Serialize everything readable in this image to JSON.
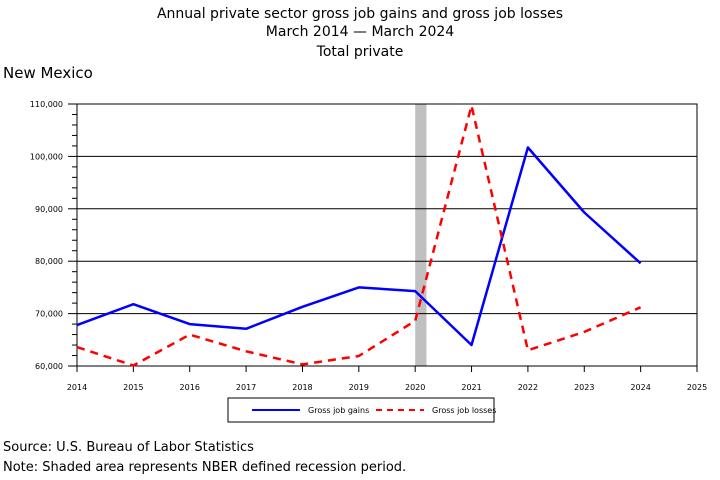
{
  "title": {
    "line1": "Annual private sector gross job gains and gross job losses",
    "line2": "March 2014 — March 2024",
    "line3": "Total private"
  },
  "region": "New Mexico",
  "chart_data": {
    "type": "line",
    "x": [
      2014,
      2015,
      2016,
      2017,
      2018,
      2019,
      2020,
      2021,
      2022,
      2023,
      2024
    ],
    "xlim": [
      2014,
      2025
    ],
    "x_ticks": [
      2014,
      2015,
      2016,
      2017,
      2018,
      2019,
      2020,
      2021,
      2022,
      2023,
      2024,
      2025
    ],
    "ylim": [
      60000,
      110000
    ],
    "y_ticks": [
      60000,
      70000,
      80000,
      90000,
      100000,
      110000
    ],
    "y_tick_labels": [
      "60,000",
      "70,000",
      "80,000",
      "90,000",
      "100,000",
      "110,000"
    ],
    "grid": "horizontal",
    "recession_shading": [
      2020,
      2020.2
    ],
    "legend_position": "bottom",
    "series": [
      {
        "name": "Gross job gains",
        "color": "#0000ff",
        "style": "solid",
        "values": [
          67800,
          71800,
          68000,
          67100,
          71300,
          75000,
          74300,
          64000,
          101700,
          89300,
          79600
        ]
      },
      {
        "name": "Gross job losses",
        "color": "#ff0000",
        "style": "dashed",
        "values": [
          63600,
          60100,
          66000,
          62800,
          60300,
          61900,
          68600,
          109700,
          63000,
          66500,
          71200
        ]
      }
    ]
  },
  "footer": {
    "source": "Source: U.S. Bureau of Labor Statistics",
    "note": "Note: Shaded area represents NBER defined recession period."
  }
}
